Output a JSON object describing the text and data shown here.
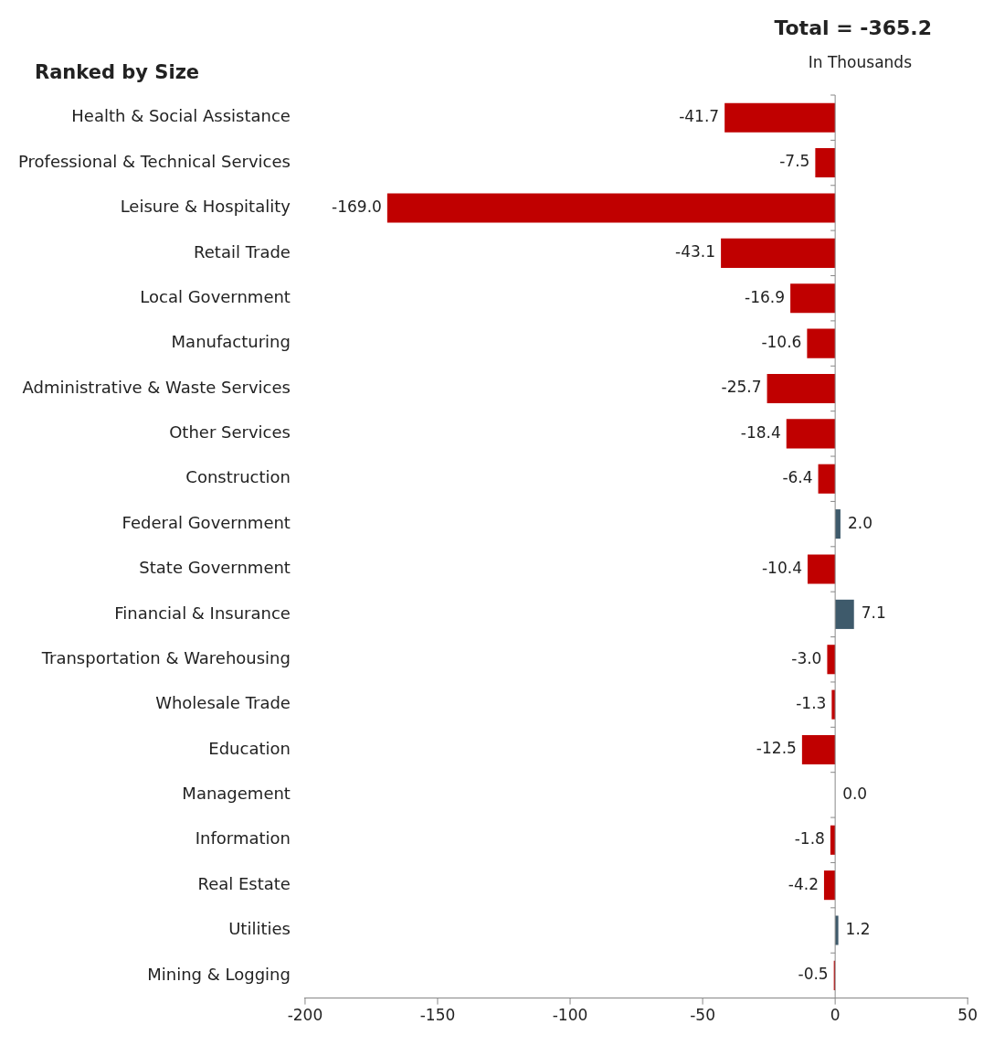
{
  "chart_data": {
    "type": "bar",
    "orientation": "horizontal",
    "title": "Ranked by Size",
    "subtitle": "Total = -365.2",
    "annotations": [
      "In Thousands"
    ],
    "categories": [
      "Health & Social Assistance",
      "Professional & Technical Services",
      "Leisure & Hospitality",
      "Retail Trade",
      "Local Government",
      "Manufacturing",
      "Administrative & Waste Services",
      "Other Services",
      "Construction",
      "Federal Government",
      "State Government",
      "Financial & Insurance",
      "Transportation & Warehousing",
      "Wholesale Trade",
      "Education",
      "Management",
      "Information",
      "Real Estate",
      "Utilities",
      "Mining & Logging"
    ],
    "values": [
      -41.7,
      -7.5,
      -169.0,
      -43.1,
      -16.9,
      -10.6,
      -25.7,
      -18.4,
      -6.4,
      2.0,
      -10.4,
      7.1,
      -3.0,
      -1.3,
      -12.5,
      0.0,
      -1.8,
      -4.2,
      1.2,
      -0.5
    ],
    "colors": [
      "#c00000",
      "#c00000",
      "#c00000",
      "#c00000",
      "#c00000",
      "#c00000",
      "#c00000",
      "#c00000",
      "#c00000",
      "#3e5a6b",
      "#c00000",
      "#3e5a6b",
      "#c00000",
      "#c00000",
      "#c00000",
      "#3e5a6b",
      "#c00000",
      "#c00000",
      "#3e5a6b",
      "#c00000"
    ],
    "value_labels": [
      "-41.7",
      "-7.5",
      "-169.0",
      "-43.1",
      "-16.9",
      "-10.6",
      "-25.7",
      "-18.4",
      "-6.4",
      "2.0",
      "-10.4",
      "7.1",
      "-3.0",
      "-1.3",
      "-12.5",
      "0.0",
      "-1.8",
      "-4.2",
      "1.2",
      "-0.5"
    ],
    "xlim": [
      -200,
      50
    ],
    "xticks": [
      -200,
      -150,
      -100,
      -50,
      0,
      50
    ],
    "legend": false
  }
}
